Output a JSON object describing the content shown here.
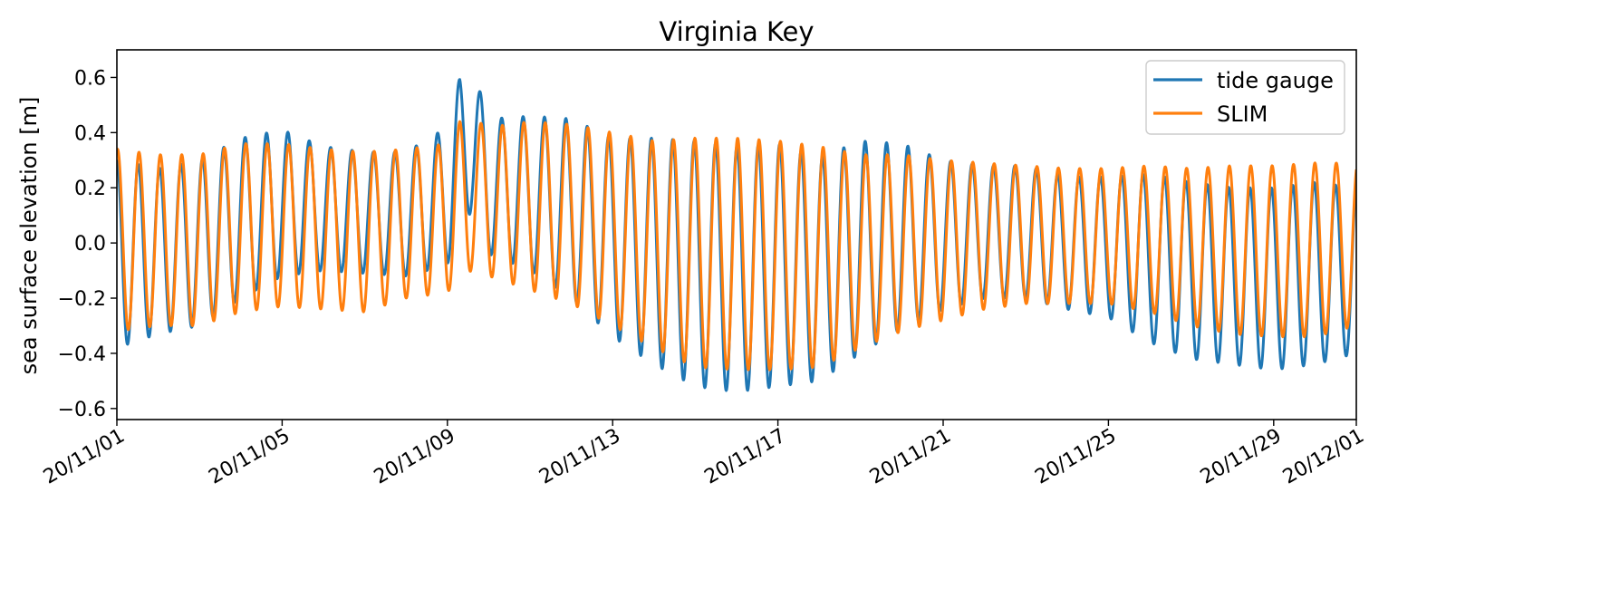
{
  "chart_data": {
    "type": "line",
    "title": "Virginia Key",
    "xlabel": "",
    "ylabel": "sea surface elevation [m]",
    "x_range": [
      "20/11/01",
      "20/12/01"
    ],
    "ylim": [
      -0.64,
      0.7
    ],
    "x_ticks": [
      "20/11/01",
      "20/11/05",
      "20/11/09",
      "20/11/13",
      "20/11/17",
      "20/11/21",
      "20/11/25",
      "20/11/29",
      "20/12/01"
    ],
    "x_tick_days": [
      0,
      4,
      8,
      12,
      16,
      20,
      24,
      28,
      30
    ],
    "y_ticks": [
      0.6,
      0.4,
      0.2,
      0.0,
      -0.2,
      -0.4,
      -0.6
    ],
    "y_tick_labels": [
      "0.6",
      "0.4",
      "0.2",
      "0.0",
      "−0.2",
      "−0.4",
      "−0.6"
    ],
    "grid": false,
    "legend_position": "top-right",
    "series_meta": [
      {
        "name": "tide gauge",
        "color": "#1f77b4"
      },
      {
        "name": "SLIM",
        "color": "#ff7f0e"
      }
    ],
    "tidal_period_hours": 12.42,
    "series": [
      {
        "name": "tide gauge",
        "color": "#1f77b4",
        "x_day": [
          0,
          1,
          2,
          3,
          4,
          5,
          6,
          7,
          8,
          8.3,
          8.6,
          9,
          10,
          11,
          12,
          13,
          14,
          15,
          16,
          17,
          18,
          19,
          20,
          21,
          22,
          23,
          24,
          25,
          26,
          27,
          28,
          29,
          30
        ],
        "high": [
          0.3,
          0.27,
          0.3,
          0.38,
          0.41,
          0.35,
          0.33,
          0.33,
          0.42,
          0.6,
          0.64,
          0.45,
          0.46,
          0.45,
          0.38,
          0.38,
          0.37,
          0.35,
          0.36,
          0.31,
          0.37,
          0.36,
          0.3,
          0.28,
          0.28,
          0.24,
          0.24,
          0.25,
          0.22,
          0.2,
          0.2,
          0.22,
          0.2
        ],
        "low": [
          -0.38,
          -0.33,
          -0.3,
          -0.2,
          -0.12,
          -0.1,
          -0.11,
          -0.12,
          -0.08,
          0.08,
          0.11,
          -0.04,
          -0.1,
          -0.2,
          -0.34,
          -0.44,
          -0.52,
          -0.54,
          -0.52,
          -0.5,
          -0.4,
          -0.31,
          -0.24,
          -0.2,
          -0.2,
          -0.24,
          -0.27,
          -0.36,
          -0.42,
          -0.44,
          -0.46,
          -0.44,
          -0.4
        ]
      },
      {
        "name": "SLIM",
        "color": "#ff7f0e",
        "x_day": [
          0,
          1,
          2,
          3,
          4,
          5,
          6,
          7,
          8,
          8.3,
          8.6,
          9,
          10,
          11,
          12,
          13,
          14,
          15,
          16,
          17,
          18,
          19,
          20,
          21,
          22,
          23,
          24,
          25,
          26,
          27,
          28,
          29,
          30
        ],
        "high": [
          0.34,
          0.32,
          0.32,
          0.36,
          0.36,
          0.34,
          0.33,
          0.34,
          0.36,
          0.44,
          0.45,
          0.42,
          0.44,
          0.43,
          0.4,
          0.37,
          0.38,
          0.38,
          0.37,
          0.35,
          0.32,
          0.32,
          0.3,
          0.29,
          0.28,
          0.27,
          0.27,
          0.28,
          0.27,
          0.28,
          0.28,
          0.29,
          0.29
        ],
        "low": [
          -0.32,
          -0.3,
          -0.3,
          -0.25,
          -0.23,
          -0.24,
          -0.25,
          -0.2,
          -0.18,
          -0.12,
          -0.1,
          -0.12,
          -0.17,
          -0.22,
          -0.3,
          -0.38,
          -0.45,
          -0.46,
          -0.46,
          -0.45,
          -0.38,
          -0.32,
          -0.28,
          -0.24,
          -0.22,
          -0.22,
          -0.22,
          -0.25,
          -0.3,
          -0.33,
          -0.34,
          -0.34,
          -0.3
        ]
      }
    ]
  }
}
